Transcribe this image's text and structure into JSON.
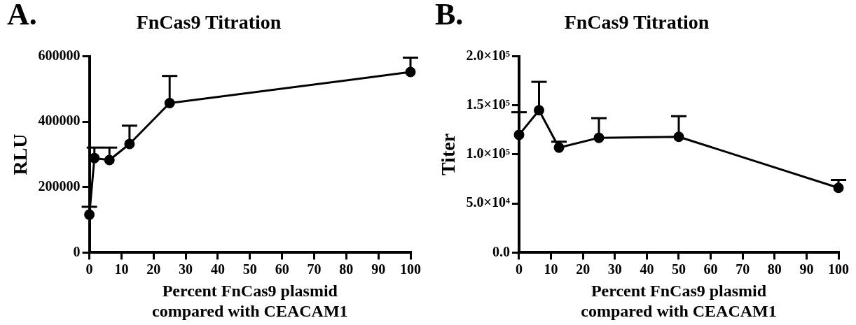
{
  "chart_data": [
    {
      "type": "line",
      "title": "FnCas9 Titration",
      "xlabel": "Percent FnCas9 plasmid\ncompared with CEACAM1",
      "ylabel": "RLU",
      "annotations": [
        "A."
      ],
      "x": [
        0,
        1.5625,
        6.25,
        12.5,
        25,
        100
      ],
      "series": [
        {
          "color": "#000000",
          "values": [
            116000,
            289000,
            283000,
            332000,
            457000,
            552000
          ],
          "errors": [
            [
              116000,
              140000
            ],
            [
              289000,
              321000
            ],
            [
              283000,
              321000
            ],
            [
              332000,
              388000
            ],
            [
              457000,
              540000
            ],
            [
              552000,
              596000
            ]
          ]
        }
      ],
      "xlim": [
        0,
        100
      ],
      "xticks": [
        0,
        10,
        20,
        30,
        40,
        50,
        60,
        70,
        80,
        90,
        100
      ],
      "ylim": [
        0,
        600000
      ],
      "yticks": [
        0,
        200000,
        400000,
        600000
      ],
      "grid": false,
      "legend": false,
      "marker": "circle",
      "line_style": "solid"
    },
    {
      "type": "line",
      "title": "FnCas9 Titration",
      "xlabel": "Percent FnCas9 plasmid\ncompared with CEACAM1",
      "ylabel": "Titer",
      "annotations": [
        "B."
      ],
      "x": [
        0,
        6.25,
        12.5,
        25,
        50,
        100
      ],
      "series": [
        {
          "color": "#000000",
          "values": [
            120000,
            145000,
            107000,
            117000,
            118000,
            66000
          ],
          "errors": [
            [
              120000,
              143000
            ],
            [
              145000,
              174000
            ],
            [
              107000,
              113000
            ],
            [
              117000,
              137000
            ],
            [
              118000,
              139000
            ],
            [
              66000,
              74000
            ]
          ]
        }
      ],
      "xlim": [
        0,
        100
      ],
      "xticks": [
        0,
        10,
        20,
        30,
        40,
        50,
        60,
        70,
        80,
        90,
        100
      ],
      "ylim": [
        0,
        200000
      ],
      "yticks": [
        {
          "value": 0,
          "label": "0.0"
        },
        {
          "value": 50000,
          "label": "5.0×10⁴"
        },
        {
          "value": 100000,
          "label": "1.0×10⁵"
        },
        {
          "value": 150000,
          "label": "1.5×10⁵"
        },
        {
          "value": 200000,
          "label": "2.0×10⁵"
        }
      ],
      "grid": false,
      "legend": false,
      "marker": "circle",
      "line_style": "solid"
    }
  ]
}
